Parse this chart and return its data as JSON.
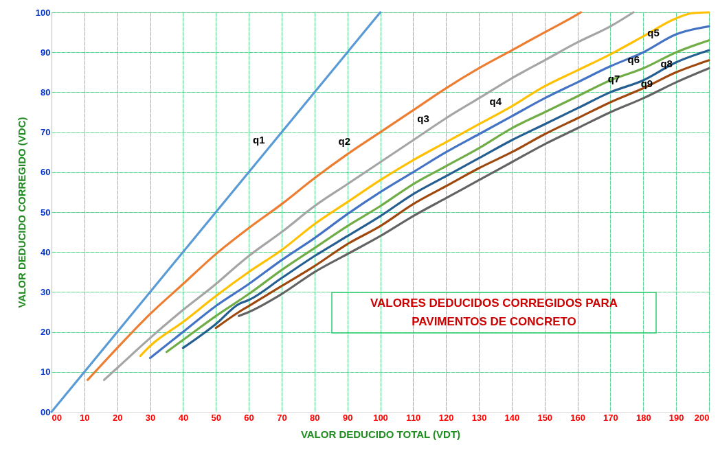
{
  "chart_data": {
    "type": "line",
    "xlabel": "VALOR DEDUCIDO TOTAL  (VDT)",
    "ylabel": "VALOR DEDUCIDO CORREGIDO (VDC)",
    "xlim": [
      0,
      200
    ],
    "ylim": [
      0,
      100
    ],
    "xticks": [
      {
        "value": 0,
        "label": "00"
      },
      10,
      20,
      30,
      40,
      50,
      60,
      70,
      80,
      90,
      100,
      110,
      120,
      130,
      140,
      150,
      160,
      170,
      180,
      190,
      200
    ],
    "yticks": [
      {
        "value": 0,
        "label": "00"
      },
      10,
      20,
      30,
      40,
      50,
      60,
      70,
      80,
      90,
      100
    ],
    "grid": true,
    "marker": "none",
    "line_style": "solid",
    "series": [
      {
        "color": "#5b9bd5",
        "x": [
          0,
          100
        ],
        "values": [
          0,
          100
        ]
      },
      {
        "color": "#ed7d31",
        "x": [
          11,
          20,
          30,
          40,
          50,
          60,
          70,
          80,
          90,
          100,
          110,
          120,
          130,
          140,
          150,
          160,
          161
        ],
        "values": [
          8,
          16,
          24.5,
          32,
          39.5,
          46,
          52,
          58.5,
          64.5,
          70,
          75.5,
          81,
          86,
          90.5,
          95,
          99.5,
          100
        ]
      },
      {
        "color": "#a5a5a5",
        "x": [
          16,
          20,
          30,
          40,
          50,
          57,
          60,
          70,
          80,
          90,
          100,
          110,
          120,
          130,
          140,
          150,
          160,
          170,
          177
        ],
        "values": [
          8,
          11,
          18.5,
          25.5,
          32,
          37,
          39,
          45,
          51.5,
          57,
          62.5,
          68,
          73.5,
          78.5,
          83.5,
          88,
          92.5,
          96.5,
          100
        ]
      },
      {
        "color": "#ffc000",
        "x": [
          27,
          30,
          40,
          50,
          60,
          70,
          80,
          90,
          100,
          110,
          120,
          130,
          140,
          150,
          160,
          170,
          180,
          190,
          195,
          200
        ],
        "values": [
          14,
          16.5,
          22.5,
          29,
          35,
          40.5,
          47,
          52.5,
          58,
          63,
          67.5,
          72,
          76.5,
          81.5,
          85.5,
          89.5,
          94,
          98.5,
          99.8,
          100
        ]
      },
      {
        "color": "#4472c4",
        "x": [
          30,
          40,
          50,
          60,
          70,
          80,
          90,
          100,
          110,
          120,
          130,
          140,
          150,
          160,
          170,
          180,
          190,
          200
        ],
        "values": [
          13.5,
          20,
          26.5,
          32,
          38,
          43.5,
          49.5,
          55,
          60,
          65,
          69.5,
          74,
          78.5,
          82.5,
          86.5,
          90,
          94.5,
          96.5
        ]
      },
      {
        "color": "#70ad47",
        "x": [
          35,
          40,
          50,
          60,
          70,
          80,
          90,
          100,
          110,
          120,
          130,
          140,
          150,
          160,
          170,
          180,
          190,
          200
        ],
        "values": [
          15,
          18,
          24,
          29.5,
          35.5,
          41,
          46.5,
          51.5,
          57,
          61.5,
          66,
          71,
          75,
          79,
          83,
          86,
          90,
          93
        ]
      },
      {
        "color": "#255e91",
        "x": [
          40,
          50,
          57,
          60,
          70,
          80,
          90,
          100,
          110,
          120,
          130,
          140,
          150,
          160,
          170,
          180,
          190,
          200
        ],
        "values": [
          16,
          22,
          27,
          28,
          33.5,
          39,
          44,
          49,
          54.5,
          59,
          63.5,
          68,
          72,
          76,
          80,
          83,
          87.5,
          90.5
        ]
      },
      {
        "color": "#9e480e",
        "x": [
          50,
          57,
          60,
          70,
          80,
          90,
          100,
          110,
          120,
          130,
          140,
          150,
          160,
          170,
          180,
          190,
          200
        ],
        "values": [
          21,
          25,
          26.5,
          31.5,
          36.5,
          42,
          46.5,
          52,
          56.5,
          61,
          65,
          69.5,
          73.5,
          77.5,
          81,
          85,
          88
        ]
      },
      {
        "color": "#636363",
        "x": [
          57,
          60,
          70,
          80,
          90,
          100,
          110,
          120,
          130,
          140,
          150,
          160,
          170,
          180,
          190,
          200
        ],
        "values": [
          24,
          25,
          29.5,
          35,
          39.5,
          44,
          49,
          53.5,
          58,
          62.5,
          67,
          71,
          75,
          78.5,
          82.5,
          86
        ]
      }
    ],
    "annotations": [
      {
        "text": "q1",
        "x": 66,
        "y": 66
      },
      {
        "text": "q2",
        "x": 92,
        "y": 65.6
      },
      {
        "text": "q3",
        "x": 116,
        "y": 71.3
      },
      {
        "text": "q4",
        "x": 138,
        "y": 75.6
      },
      {
        "text": "q5",
        "x": 186,
        "y": 92.7
      },
      {
        "text": "q6",
        "x": 180,
        "y": 86
      },
      {
        "text": "q7",
        "x": 174,
        "y": 81.2
      },
      {
        "text": "q8",
        "x": 190,
        "y": 85
      },
      {
        "text": "q9",
        "x": 184,
        "y": 80.1
      },
      "VALORES  DEDUCIDOS  CORREGIDOS  PARA\nPAVIMENTOS  DE  CONCRETO"
    ]
  }
}
